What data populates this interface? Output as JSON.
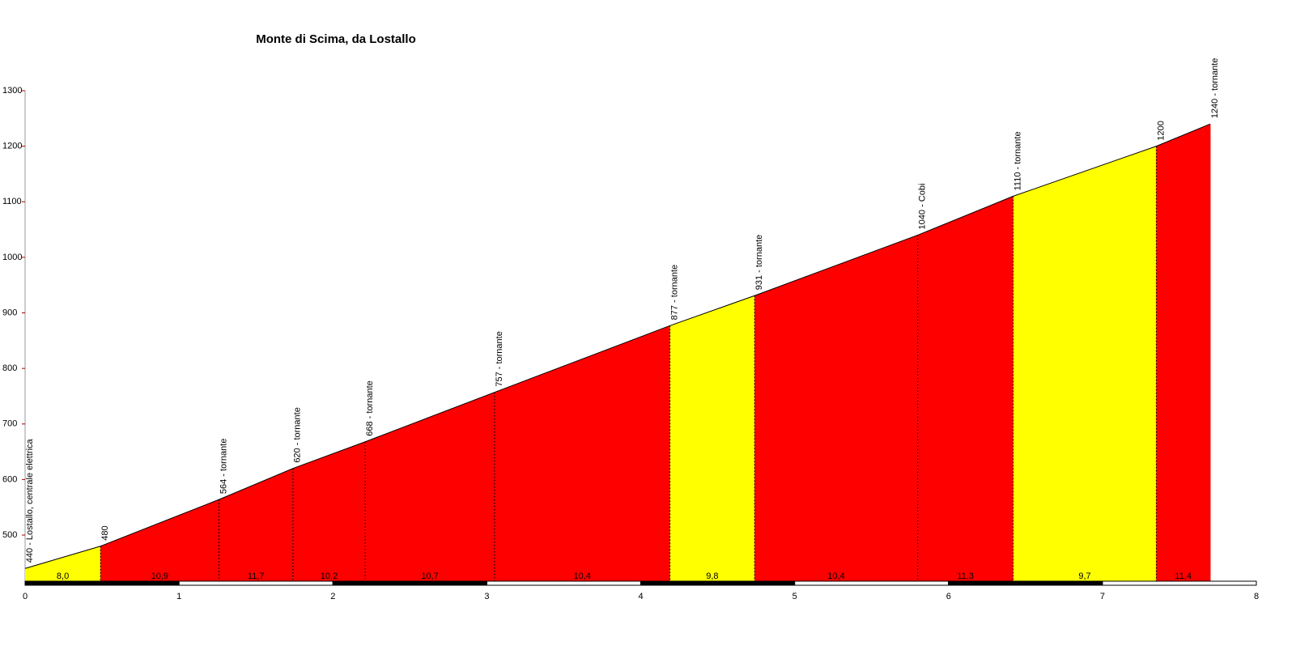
{
  "chart_data": {
    "type": "elevation-profile",
    "title": "Monte di Scima, da Lostallo",
    "x": [
      0,
      0.49,
      1.26,
      1.74,
      2.21,
      3.05,
      4.19,
      4.74,
      5.8,
      6.42,
      7.35,
      7.7
    ],
    "values": [
      440,
      480,
      564,
      620,
      668,
      757,
      877,
      931,
      1040,
      1110,
      1200,
      1240
    ],
    "point_labels": [
      "440 - Lostallo, centrale elettrica",
      "480",
      "564 - tornante",
      "620 - tornante",
      "668 - tornante",
      "757 - tornante",
      "877 - tornante",
      "931 - tornante",
      "1040 - Cobi",
      "1110 - tornante",
      "1200",
      "1240 - tornante"
    ],
    "gradients": [
      8.0,
      10.9,
      11.7,
      10.2,
      10.7,
      10.4,
      9.8,
      10.4,
      11.3,
      9.7,
      11.4
    ],
    "gradient_value_labels": [
      "8,0",
      "10,9",
      "11,7",
      "10,2",
      "10,7",
      "10,4",
      "9,8",
      "10,4",
      "11,3",
      "9,7",
      "11,4"
    ],
    "segment_colors": [
      "#ffff00",
      "#ff0000",
      "#ff0000",
      "#ff0000",
      "#ff0000",
      "#ff0000",
      "#ffff00",
      "#ff0000",
      "#ff0000",
      "#ffff00",
      "#ff0000"
    ],
    "xlim": [
      0,
      8
    ],
    "xticks": [
      0,
      1,
      2,
      3,
      4,
      5,
      6,
      7,
      8
    ],
    "ylim": [
      417,
      1300
    ],
    "yticks": [
      500,
      600,
      700,
      800,
      900,
      1000,
      1100,
      1200,
      1300
    ]
  }
}
